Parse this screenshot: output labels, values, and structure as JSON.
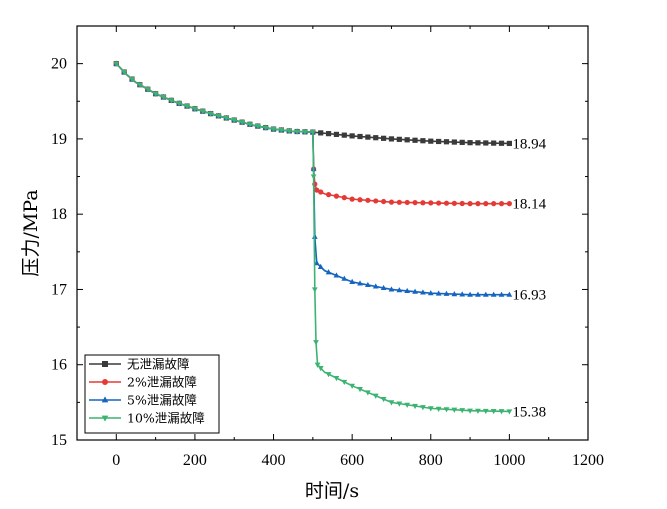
{
  "chart_data": {
    "type": "line",
    "xlabel": "时间/s",
    "ylabel": "压力/MPa",
    "xlim": [
      -100,
      1200
    ],
    "ylim": [
      15,
      20.5
    ],
    "xticks": [
      0,
      200,
      400,
      600,
      800,
      1000,
      1200
    ],
    "yticks": [
      15,
      16,
      17,
      18,
      19,
      20
    ],
    "legend_position": "bottom-left",
    "grid": false,
    "series": [
      {
        "name": "无泄漏故障",
        "color": "#3a3a3a",
        "marker": "square",
        "end_label": "18.94",
        "points": [
          [
            0,
            20.0
          ],
          [
            25,
            19.86
          ],
          [
            50,
            19.75
          ],
          [
            100,
            19.6
          ],
          [
            150,
            19.49
          ],
          [
            200,
            19.4
          ],
          [
            250,
            19.32
          ],
          [
            300,
            19.25
          ],
          [
            350,
            19.18
          ],
          [
            400,
            19.13
          ],
          [
            450,
            19.1
          ],
          [
            500,
            19.09
          ],
          [
            600,
            19.04
          ],
          [
            700,
            19.0
          ],
          [
            800,
            18.97
          ],
          [
            900,
            18.95
          ],
          [
            1000,
            18.94
          ]
        ]
      },
      {
        "name": "2%泄漏故障",
        "color": "#e53935",
        "marker": "circle",
        "end_label": "18.14",
        "points": [
          [
            0,
            20.0
          ],
          [
            25,
            19.86
          ],
          [
            50,
            19.75
          ],
          [
            100,
            19.6
          ],
          [
            150,
            19.49
          ],
          [
            200,
            19.4
          ],
          [
            250,
            19.32
          ],
          [
            300,
            19.25
          ],
          [
            350,
            19.18
          ],
          [
            400,
            19.13
          ],
          [
            450,
            19.1
          ],
          [
            500,
            19.09
          ],
          [
            502,
            18.6
          ],
          [
            505,
            18.4
          ],
          [
            510,
            18.32
          ],
          [
            530,
            18.27
          ],
          [
            600,
            18.2
          ],
          [
            700,
            18.16
          ],
          [
            800,
            18.15
          ],
          [
            900,
            18.14
          ],
          [
            1000,
            18.14
          ]
        ]
      },
      {
        "name": "5%泄漏故障",
        "color": "#1565c0",
        "marker": "triangle-up",
        "end_label": "16.93",
        "points": [
          [
            0,
            20.0
          ],
          [
            25,
            19.86
          ],
          [
            50,
            19.75
          ],
          [
            100,
            19.6
          ],
          [
            150,
            19.49
          ],
          [
            200,
            19.4
          ],
          [
            250,
            19.32
          ],
          [
            300,
            19.25
          ],
          [
            350,
            19.18
          ],
          [
            400,
            19.13
          ],
          [
            450,
            19.1
          ],
          [
            500,
            19.09
          ],
          [
            502,
            18.6
          ],
          [
            505,
            17.7
          ],
          [
            510,
            17.35
          ],
          [
            530,
            17.25
          ],
          [
            600,
            17.1
          ],
          [
            700,
            17.0
          ],
          [
            800,
            16.95
          ],
          [
            900,
            16.93
          ],
          [
            1000,
            16.93
          ]
        ]
      },
      {
        "name": "10%泄漏故障",
        "color": "#3cb371",
        "marker": "triangle-down",
        "end_label": "15.38",
        "points": [
          [
            0,
            20.0
          ],
          [
            25,
            19.86
          ],
          [
            50,
            19.75
          ],
          [
            100,
            19.6
          ],
          [
            150,
            19.49
          ],
          [
            200,
            19.4
          ],
          [
            250,
            19.32
          ],
          [
            300,
            19.25
          ],
          [
            350,
            19.18
          ],
          [
            400,
            19.13
          ],
          [
            450,
            19.1
          ],
          [
            500,
            19.09
          ],
          [
            502,
            18.5
          ],
          [
            505,
            17.0
          ],
          [
            508,
            16.3
          ],
          [
            512,
            16.0
          ],
          [
            530,
            15.9
          ],
          [
            600,
            15.72
          ],
          [
            700,
            15.5
          ],
          [
            800,
            15.42
          ],
          [
            900,
            15.39
          ],
          [
            1000,
            15.38
          ]
        ]
      }
    ]
  }
}
